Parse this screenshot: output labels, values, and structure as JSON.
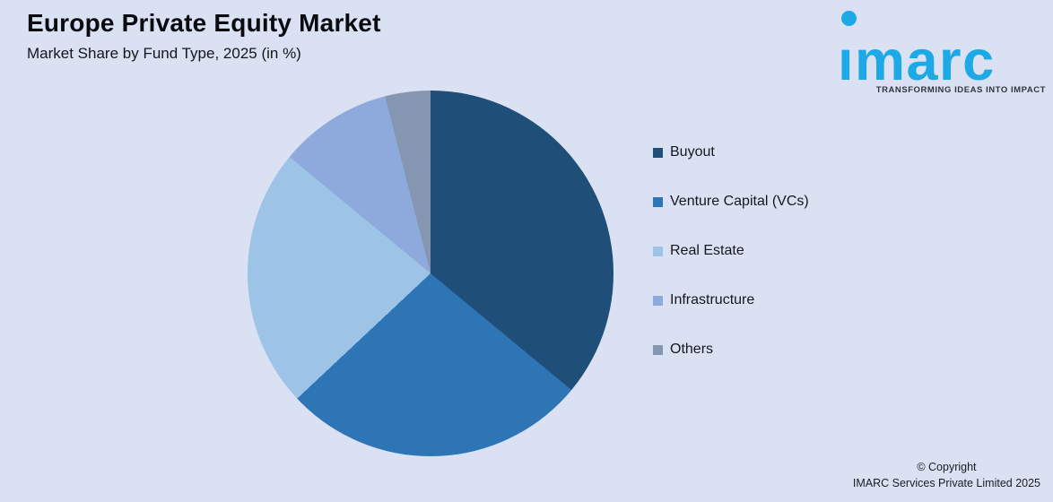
{
  "header": {
    "title": "Europe Private Equity Market",
    "subtitle": "Market Share by Fund Type, 2025 (in %)"
  },
  "logo": {
    "brand": "imarc",
    "brand_display": "ımarc",
    "tagline": "TRANSFORMING IDEAS INTO IMPACT",
    "brand_color": "#1DA8E6",
    "tagline_color": "#2E3640"
  },
  "chart_data": {
    "type": "pie",
    "title": "Europe Private Equity Market",
    "subtitle": "Market Share by Fund Type, 2025 (in %)",
    "unit": "%",
    "start_angle_deg": 0,
    "direction": "clockwise",
    "legend_position": "right",
    "categories": [
      "Buyout",
      "Venture Capital (VCs)",
      "Real Estate",
      "Infrastructure",
      "Others"
    ],
    "values": [
      36,
      27,
      23,
      10,
      4
    ],
    "series": [
      {
        "name": "Buyout",
        "value": 36,
        "color": "#1F4E79"
      },
      {
        "name": "Venture Capital (VCs)",
        "value": 27,
        "color": "#2E75B6"
      },
      {
        "name": "Real Estate",
        "value": 23,
        "color": "#9DC3E6"
      },
      {
        "name": "Infrastructure",
        "value": 10,
        "color": "#8EAADC"
      },
      {
        "name": "Others",
        "value": 4,
        "color": "#8496B0"
      }
    ]
  },
  "footer": {
    "copyright_line1": "© Copyright",
    "copyright_line2": "IMARC Services Private Limited 2025"
  },
  "colors": {
    "background": "#D9E1F2"
  }
}
